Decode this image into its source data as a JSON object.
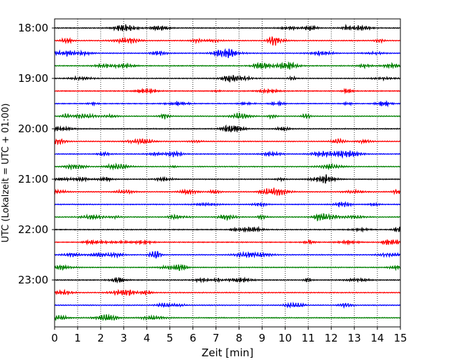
{
  "chart_data": {
    "type": "line",
    "title": "",
    "xlabel": "Zeit  [min]",
    "ylabel": "UTC (Lokalzeit = UTC + 01:00)",
    "xlim": [
      0,
      15
    ],
    "x_ticks": [
      0,
      1,
      2,
      3,
      4,
      5,
      6,
      7,
      8,
      9,
      10,
      11,
      12,
      13,
      14,
      15
    ],
    "y_tick_labels": [
      "18:00",
      "19:00",
      "20:00",
      "21:00",
      "22:00",
      "23:00"
    ],
    "grid": "vertical dotted",
    "trace_colors": [
      "#000000",
      "#ff0000",
      "#0000ff",
      "#008000"
    ],
    "traces": [
      {
        "start": "18:00",
        "color": "#000000"
      },
      {
        "start": "18:15",
        "color": "#ff0000"
      },
      {
        "start": "18:30",
        "color": "#0000ff"
      },
      {
        "start": "18:45",
        "color": "#008000"
      },
      {
        "start": "19:00",
        "color": "#000000"
      },
      {
        "start": "19:15",
        "color": "#ff0000"
      },
      {
        "start": "19:30",
        "color": "#0000ff"
      },
      {
        "start": "19:45",
        "color": "#008000"
      },
      {
        "start": "20:00",
        "color": "#000000"
      },
      {
        "start": "20:15",
        "color": "#ff0000"
      },
      {
        "start": "20:30",
        "color": "#0000ff"
      },
      {
        "start": "20:45",
        "color": "#008000"
      },
      {
        "start": "21:00",
        "color": "#000000"
      },
      {
        "start": "21:15",
        "color": "#ff0000"
      },
      {
        "start": "21:30",
        "color": "#0000ff"
      },
      {
        "start": "21:45",
        "color": "#008000"
      },
      {
        "start": "22:00",
        "color": "#000000"
      },
      {
        "start": "22:15",
        "color": "#ff0000"
      },
      {
        "start": "22:30",
        "color": "#0000ff"
      },
      {
        "start": "22:45",
        "color": "#008000"
      },
      {
        "start": "23:00",
        "color": "#000000"
      },
      {
        "start": "23:15",
        "color": "#ff0000"
      },
      {
        "start": "23:30",
        "color": "#0000ff"
      },
      {
        "start": "23:45",
        "color": "#008000"
      }
    ]
  }
}
